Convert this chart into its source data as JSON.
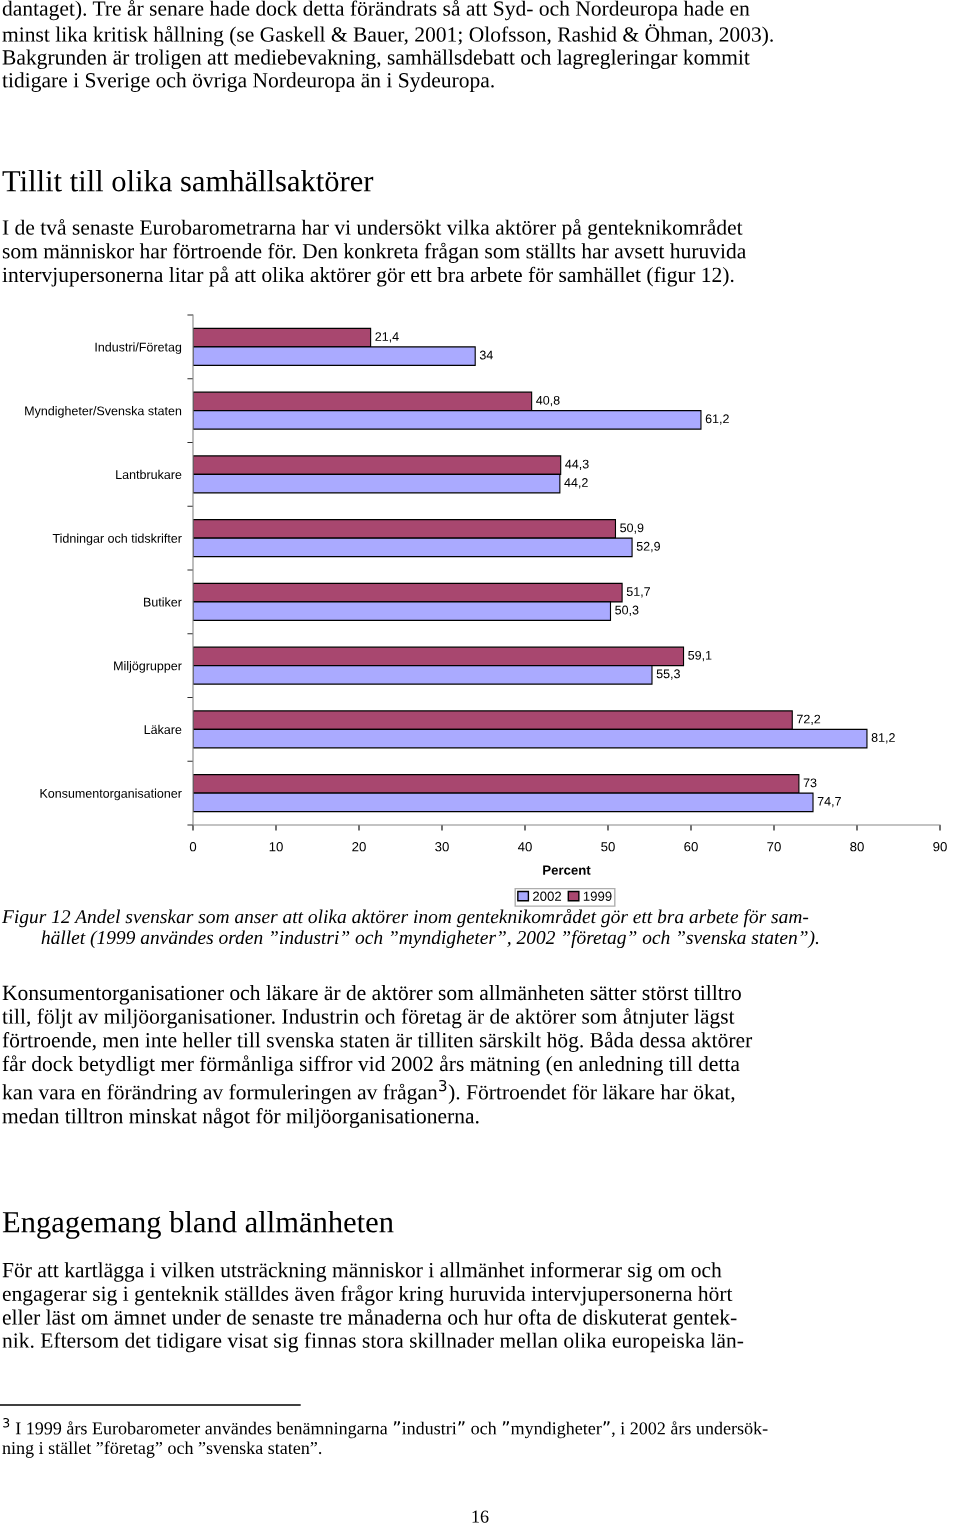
{
  "chart_data": {
    "type": "bar",
    "orientation": "horizontal",
    "xlabel": "Percent",
    "categories": [
      "Industri/Företag",
      "Myndigheter/Svenska staten",
      "Lantbrukare",
      "Tidningar och tidskrifter",
      "Butiker",
      "Miljögrupper",
      "Läkare",
      "Konsumentorganisationer"
    ],
    "series": [
      {
        "name": "1999",
        "color": "#a8476f",
        "values": [
          21.4,
          40.8,
          44.3,
          50.9,
          51.7,
          59.1,
          72.2,
          73
        ],
        "value_labels": [
          "21,4",
          "40,8",
          "44,3",
          "50,9",
          "51,7",
          "59,1",
          "72,2",
          "73"
        ]
      },
      {
        "name": "2002",
        "color": "#aaaaff",
        "values": [
          34,
          61.2,
          44.2,
          52.9,
          50.3,
          55.3,
          81.2,
          74.7
        ],
        "value_labels": [
          "34",
          "61,2",
          "44,2",
          "52,9",
          "50,3",
          "55,3",
          "81,2",
          "74,7"
        ]
      }
    ],
    "xlim": [
      0,
      90
    ],
    "xticks": [
      0,
      10,
      20,
      30,
      40,
      50,
      60,
      70,
      80,
      90
    ],
    "legend": "bottom",
    "grid": false,
    "annotations": [
      "dantaget). Tre år senare hade dock detta förändrats så att Syd- och Nordeuropa hade en\nminst lika kritisk hållning (se Gaskell & Bauer, 2001; Olofsson, Rashid & Öhman, 2003).\nBakgrunden är troligen att mediebevakning, samhällsdebatt och lagregleringar kommit\ntidigare i Sverige och övriga Nordeuropa än i Sydeuropa.",
      "Tillit till olika samhällsaktörer",
      "I de två senaste Eurobarometrarna har vi undersökt vilka aktörer på genteknikområdet\nsom människor har förtroende för. Den konkreta frågan som ställts har avsett huruvida\nintervjupersonerna litar på att olika aktörer gör ett bra arbete för samhället (figur 12).",
      "Figur 12 Andel svenskar som anser att olika aktörer inom genteknikområdet gör ett bra arbete för sam-\n        hället (1999 användes orden ”industri” och ”myndigheter”, 2002 ”företag” och ”svenska staten”).",
      "Konsumentorganisationer och läkare är de aktörer som allmänheten sätter störst tilltro\ntill, följt av miljöorganisationer. Industrin och företag är de aktörer som åtnjuter lägst\nförtroende, men inte heller till svenska staten är tilliten särskilt hög. Båda dessa aktörer\nfår dock betydligt mer förmånliga siffror vid 2002 års mätning (en anledning till detta\nkan vara en förändring av formuleringen av frågan$^{3}$). Förtroendet för läkare har ökat,\nmedan tilltron minskat något för miljöorganisationerna.",
      "Engagemang bland allmänheten",
      "För att kartlägga i vilken utsträckning människor i allmänhet informerar sig om och\nengagerar sig i genteknik ställdes även frågor kring huruvida intervjupersonerna hört\neller läst om ämnet under de senaste tre månaderna och hur ofta de diskuterat gentek-\nnik. Eftersom det tidigare visat sig finnas stora skillnader mellan olika europeiska län-",
      "$^{3}$ I 1999 års Eurobarometer användes benämningarna ”industri” och ”myndigheter”, i 2002 års undersök-\nning i stället ”företag” och ”svenska staten”.",
      "16"
    ]
  }
}
